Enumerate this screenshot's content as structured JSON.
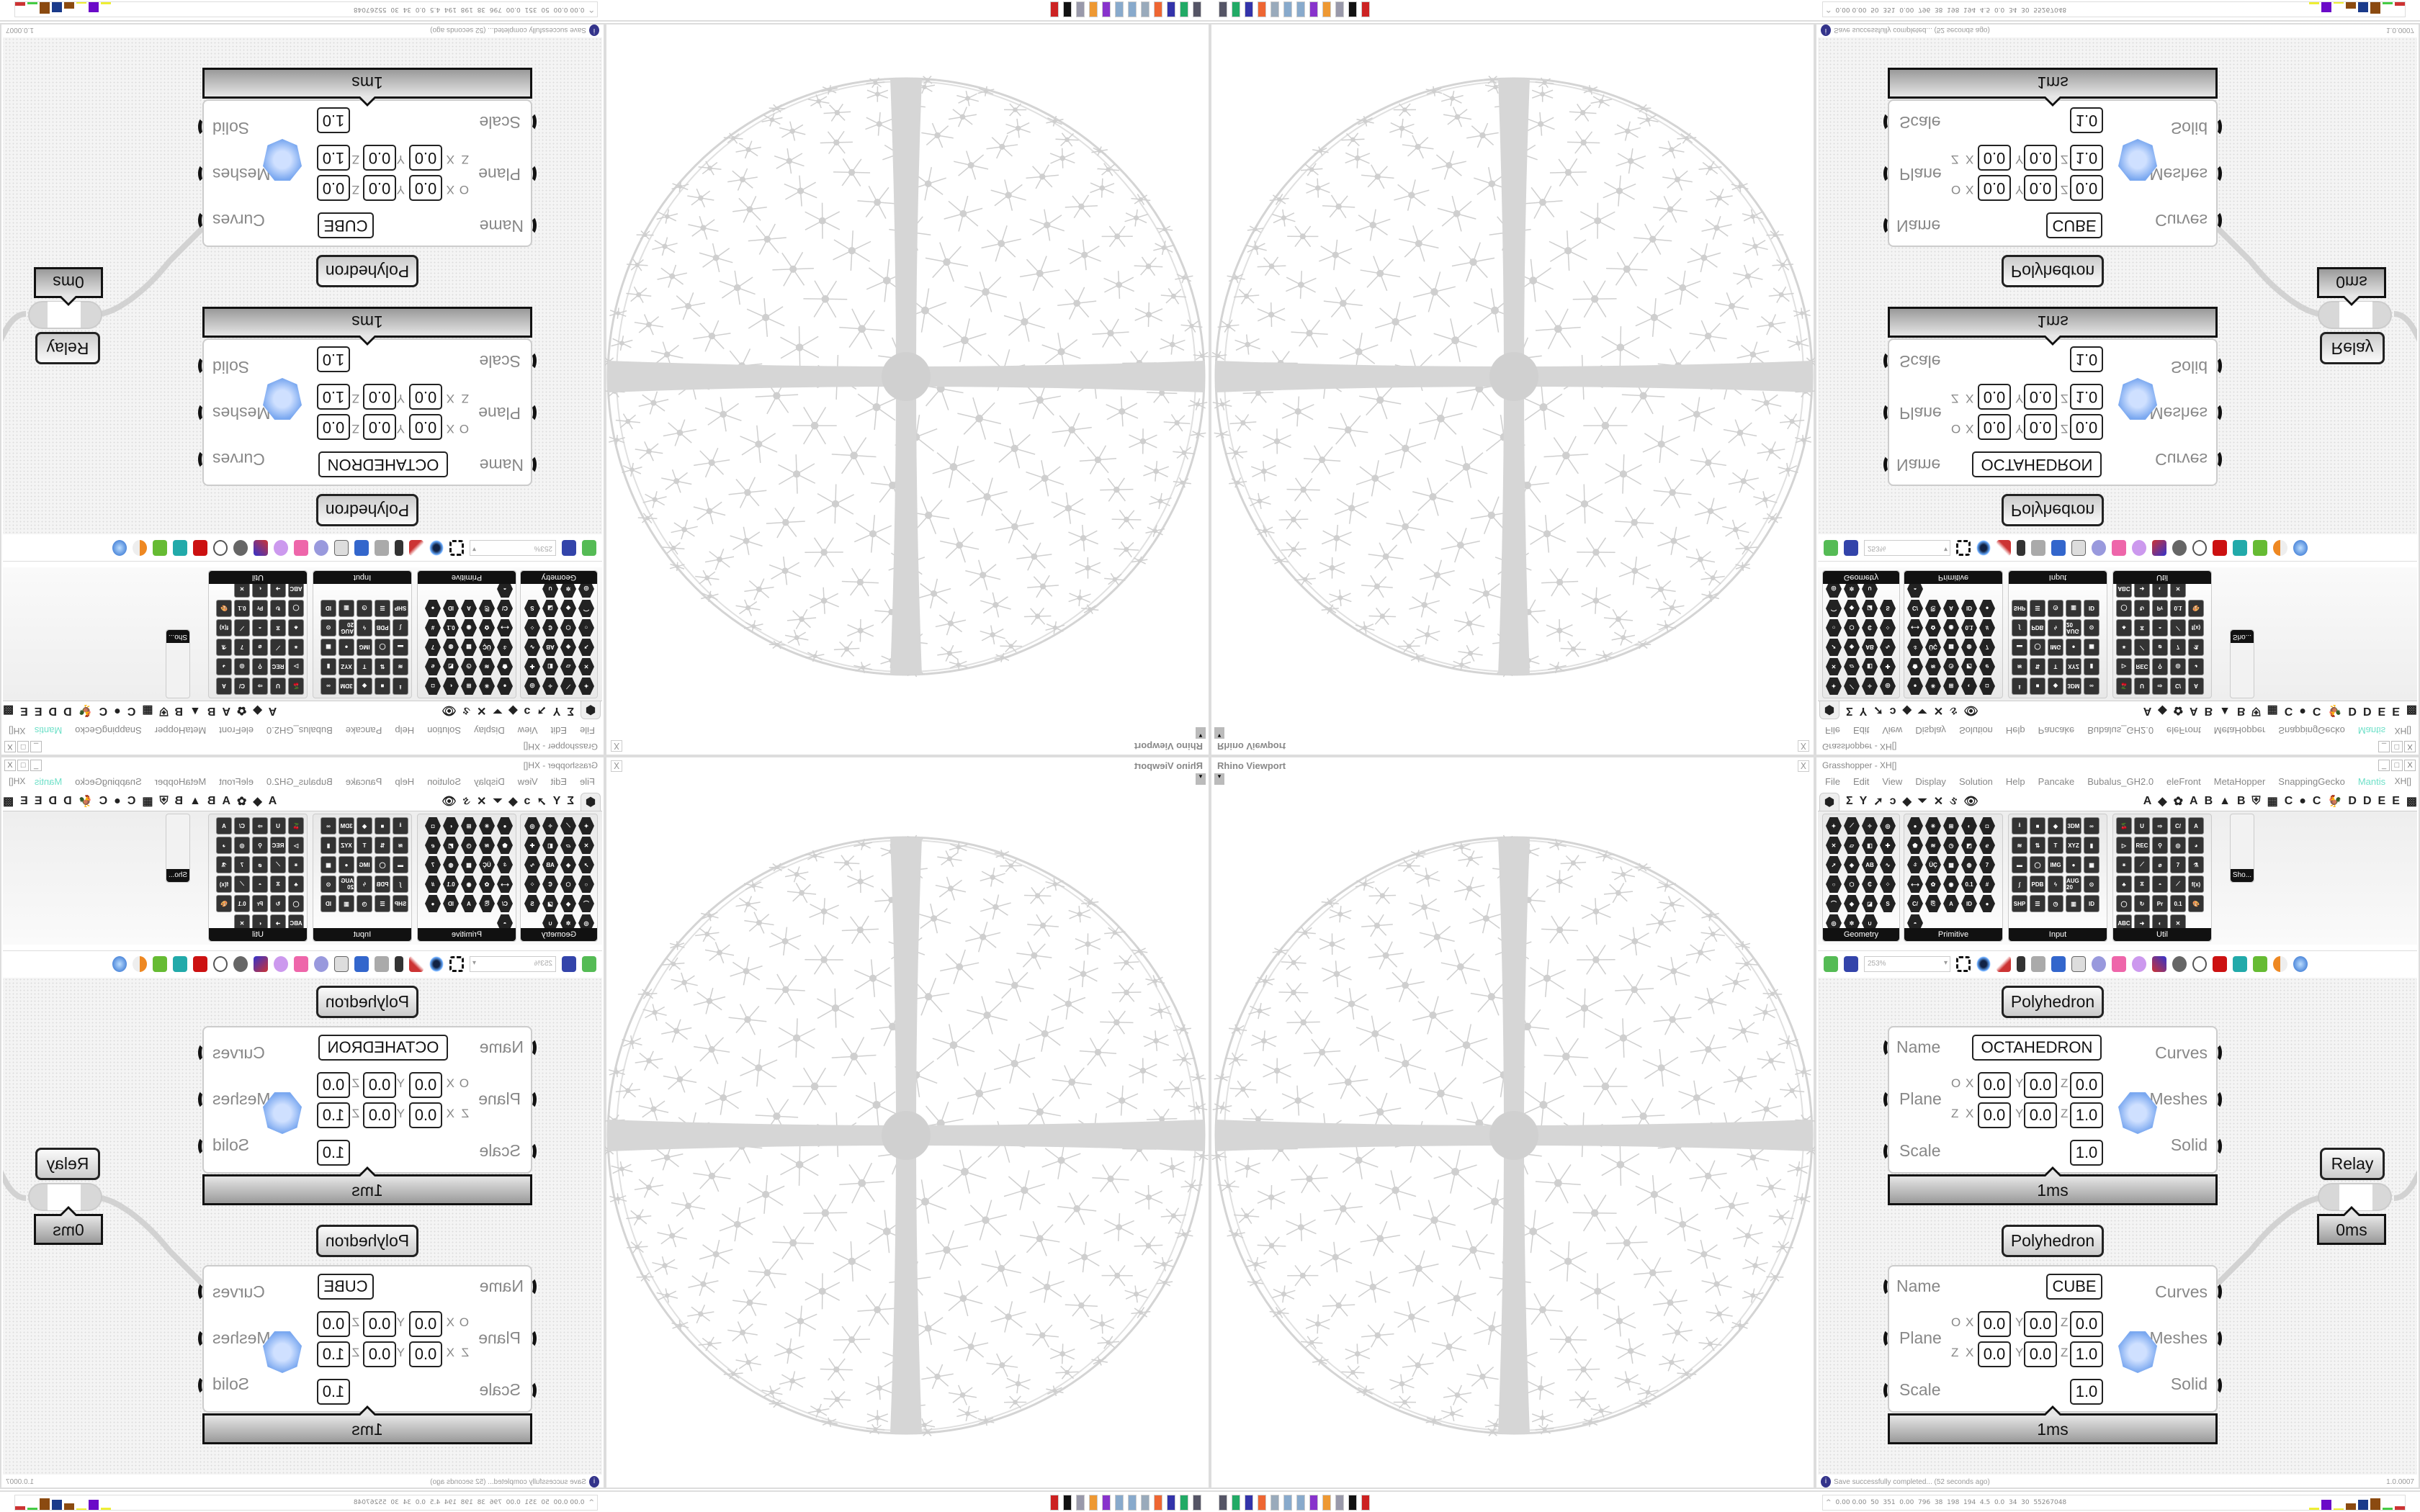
{
  "viewport": {
    "title": "Rhino Viewport",
    "close_label": "X"
  },
  "grasshopper": {
    "title": "Grasshopper - XH[]",
    "window_controls": {
      "minimize": "_",
      "maximize": "□",
      "close": "X"
    },
    "menu": [
      "File",
      "Edit",
      "View",
      "Display",
      "Solution",
      "Help",
      "Pancake",
      "Bubalus_GH2.0",
      "eleFront",
      "MetaHopper",
      "SnappingGecko",
      "Mantis"
    ],
    "document_name": "XH[]",
    "tabs": {
      "icon_tabs": [
        "⬢",
        "Σ",
        "Y",
        "➚",
        "ↄ",
        "◆",
        "⏷",
        "✕",
        "ઙ",
        "👁"
      ],
      "letter_tabs": [
        "A",
        "◆",
        "✿",
        "A",
        "B",
        "▲",
        "B",
        "⛨",
        "▦",
        "C",
        "●",
        "C",
        "🐓",
        "D",
        "D",
        "E",
        "E",
        "▩"
      ]
    },
    "palette": {
      "groups": [
        {
          "label": "Geometry",
          "icons": [
            "✦",
            "⟋",
            "✧",
            "◎",
            "✕",
            "▱",
            "◧",
            "✚",
            "➚",
            "◈",
            "AB",
            "∿",
            "○",
            "⬡",
            "₵",
            "⁘",
            "⌒",
            "◆",
            "◪",
            "S",
            "◎",
            "✲",
            "∪"
          ]
        },
        {
          "label": "Primitive",
          "icons": [
            "●",
            "✳",
            "⊞",
            "◐",
            "◘",
            "⬟",
            "≋",
            "◷",
            "◩",
            "ℯ",
            "ઙ",
            "ÜÇ",
            "▩",
            "◍",
            "7",
            "⟷",
            "✿",
            "◉",
            "0.1",
            "#",
            "C/",
            "⎘",
            "A",
            "ID",
            "●",
            "◓"
          ]
        },
        {
          "label": "Input",
          "icons": [
            "⭳",
            "■",
            "◆",
            "3DM",
            "∞",
            "≋",
            "⇅",
            "T",
            "XYZ",
            "▮",
            "▬",
            "◯",
            "IMG",
            "●",
            "▦",
            "∫",
            "PDB",
            "ϟ",
            "AUG 20",
            "⊙",
            "SHP",
            "☰",
            "◷",
            "▥",
            "ID"
          ]
        },
        {
          "label": "Util",
          "icons": [
            "🍒",
            "U",
            "⇨",
            "C/",
            "A",
            "▷",
            "REC",
            "⚲",
            "◎",
            "◕",
            "⚹",
            "⟋",
            "⌀",
            "7",
            "⚗",
            "♣",
            "⧖",
            "◓",
            "⟋",
            "f(x)",
            "◯",
            "↻",
            "Pr",
            "0.1",
            "🎨",
            "ABC",
            "➜",
            "◐",
            "✕"
          ]
        }
      ],
      "short_group_label": "Sho..."
    },
    "toolbar": {
      "zoom_value": "253%"
    },
    "components": [
      {
        "label": "Polyhedron",
        "inputs": [
          "Name",
          "Plane",
          "Scale"
        ],
        "outputs": [
          "Curves",
          "Meshes",
          "Solid"
        ],
        "name_value": "OCTAHEDRON",
        "origin_label": "O",
        "zaxis_label": "Z",
        "axis_labels": [
          "X",
          "Y",
          "Z"
        ],
        "origin": [
          "0.0",
          "0.0",
          "0.0"
        ],
        "zaxis": [
          "0.0",
          "0.0",
          "1.0"
        ],
        "scale_value": "1.0",
        "time": "1ms"
      },
      {
        "label": "Polyhedron",
        "inputs": [
          "Name",
          "Plane",
          "Scale"
        ],
        "outputs": [
          "Curves",
          "Meshes",
          "Solid"
        ],
        "name_value": "CUBE",
        "origin_label": "O",
        "zaxis_label": "Z",
        "axis_labels": [
          "X",
          "Y",
          "Z"
        ],
        "origin": [
          "0.0",
          "0.0",
          "0.0"
        ],
        "zaxis": [
          "0.0",
          "0.0",
          "1.0"
        ],
        "scale_value": "1.0",
        "time": "1ms"
      }
    ],
    "relay": {
      "label": "Relay",
      "time": "0ms"
    },
    "status": {
      "icon": "i",
      "message": "Save successfully completed... (52 seconds ago)",
      "version": "1.0.0007"
    }
  },
  "taskbar": {
    "app_icon_colors": [
      "#556",
      "#2a6",
      "#33a",
      "#e63",
      "#9ab",
      "#8ac",
      "#8ac",
      "#83c",
      "#e93",
      "#99a",
      "#111",
      "#c22"
    ],
    "tray_caret": "^",
    "tray_values": "0.00 0.00  50  351  0.00  796  38  198  194  4.5  0.0  34  30  55267048",
    "tray_bar_colors": [
      "#ee3",
      "#6a0ac8",
      "#ee3",
      "#8b4a10",
      "#1a3a8a",
      "#8b4a10",
      "#4c4",
      "#c33"
    ]
  }
}
